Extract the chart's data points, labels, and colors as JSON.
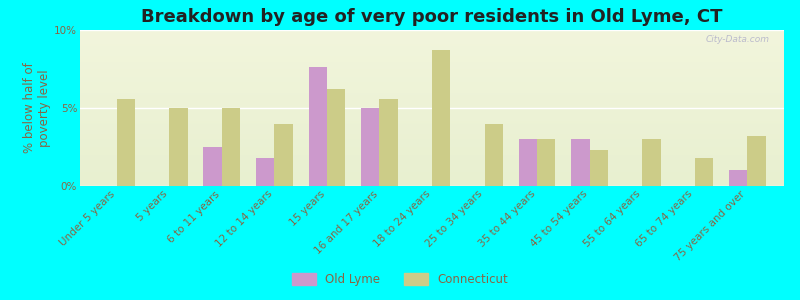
{
  "title": "Breakdown by age of very poor residents in Old Lyme, CT",
  "ylabel": "% below half of\npoverty level",
  "categories": [
    "Under 5 years",
    "5 years",
    "6 to 11 years",
    "12 to 14 years",
    "15 years",
    "16 and 17 years",
    "18 to 24 years",
    "25 to 34 years",
    "35 to 44 years",
    "45 to 54 years",
    "55 to 64 years",
    "65 to 74 years",
    "75 years and over"
  ],
  "old_lyme": [
    null,
    null,
    2.5,
    1.8,
    7.6,
    5.0,
    null,
    null,
    3.0,
    3.0,
    null,
    null,
    1.0
  ],
  "connecticut": [
    5.6,
    5.0,
    5.0,
    4.0,
    6.2,
    5.6,
    8.7,
    4.0,
    3.0,
    2.3,
    3.0,
    1.8,
    3.2
  ],
  "old_lyme_color": "#cc99cc",
  "connecticut_color": "#cccc88",
  "background_color": "#00ffff",
  "grad_top": "#f2f5dc",
  "grad_bottom": "#e8f0d0",
  "ylim": [
    0,
    10
  ],
  "yticks": [
    0,
    5,
    10
  ],
  "ytick_labels": [
    "0%",
    "5%",
    "10%"
  ],
  "bar_width": 0.35,
  "title_fontsize": 13,
  "axis_label_fontsize": 8.5,
  "tick_fontsize": 7.5,
  "label_color": "#886644",
  "watermark": "City-Data.com"
}
